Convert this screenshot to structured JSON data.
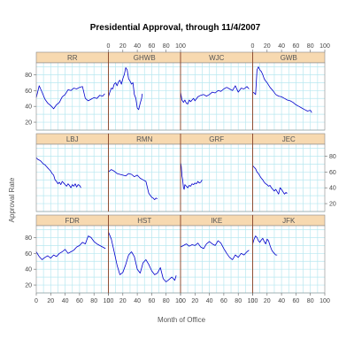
{
  "chart_data": {
    "type": "line",
    "title": "Presidential Approval, through  11/4/2007",
    "xlabel": "Month of Office",
    "ylabel": "Approval Rate",
    "xlim": [
      0,
      100
    ],
    "ylim": [
      10,
      95
    ],
    "x_ticks": [
      0,
      20,
      40,
      60,
      80,
      100
    ],
    "y_ticks": [
      20,
      40,
      60,
      80
    ],
    "grid": true,
    "colors": {
      "line": "#0000cc",
      "grid": "#b8e8f0",
      "strip": "#f7d9b0",
      "frame": "#888888",
      "divider": "#8b3a1a"
    },
    "panels": [
      {
        "name": "RR",
        "x": [
          0,
          4,
          8,
          12,
          16,
          20,
          24,
          28,
          32,
          36,
          40,
          44,
          48,
          52,
          56,
          60,
          64,
          68,
          72,
          76,
          80,
          84,
          88,
          92,
          95
        ],
        "y": [
          51,
          66,
          58,
          49,
          44,
          41,
          37,
          42,
          45,
          52,
          55,
          61,
          60,
          63,
          62,
          64,
          65,
          50,
          47,
          49,
          51,
          50,
          54,
          53,
          56
        ]
      },
      {
        "name": "GHWB",
        "x": [
          0,
          2,
          4,
          6,
          8,
          10,
          12,
          14,
          16,
          18,
          20,
          22,
          24,
          26,
          28,
          30,
          32,
          34,
          36,
          38,
          40,
          42,
          44,
          46,
          47
        ],
        "y": [
          52,
          58,
          63,
          62,
          68,
          70,
          66,
          71,
          73,
          68,
          75,
          80,
          89,
          86,
          75,
          72,
          68,
          70,
          55,
          50,
          38,
          36,
          44,
          50,
          56
        ]
      },
      {
        "name": "WJC",
        "x": [
          0,
          2,
          4,
          6,
          8,
          10,
          12,
          14,
          16,
          18,
          20,
          24,
          28,
          32,
          36,
          40,
          44,
          48,
          52,
          56,
          60,
          64,
          68,
          72,
          76,
          80,
          84,
          88,
          92,
          95
        ],
        "y": [
          58,
          48,
          45,
          48,
          44,
          43,
          48,
          46,
          48,
          50,
          47,
          52,
          54,
          55,
          53,
          55,
          58,
          57,
          60,
          59,
          62,
          64,
          62,
          60,
          66,
          58,
          63,
          62,
          65,
          62
        ]
      },
      {
        "name": "GWB",
        "x": [
          0,
          2,
          4,
          6,
          8,
          10,
          12,
          14,
          16,
          18,
          20,
          24,
          28,
          32,
          36,
          40,
          44,
          48,
          52,
          56,
          60,
          64,
          68,
          72,
          76,
          80,
          82
        ],
        "y": [
          58,
          57,
          55,
          86,
          90,
          86,
          84,
          80,
          75,
          72,
          70,
          64,
          60,
          55,
          53,
          52,
          50,
          48,
          47,
          45,
          42,
          40,
          38,
          36,
          34,
          35,
          32
        ]
      },
      {
        "name": "LBJ",
        "x": [
          0,
          2,
          4,
          6,
          8,
          10,
          12,
          14,
          16,
          18,
          20,
          22,
          24,
          26,
          28,
          30,
          32,
          34,
          36,
          38,
          40,
          42,
          44,
          46,
          48,
          50,
          52,
          54,
          56,
          58,
          60,
          62
        ],
        "y": [
          78,
          76,
          75,
          74,
          72,
          70,
          69,
          67,
          65,
          63,
          61,
          58,
          56,
          50,
          48,
          45,
          47,
          44,
          48,
          46,
          44,
          42,
          45,
          43,
          40,
          44,
          42,
          45,
          41,
          44,
          43,
          40
        ]
      },
      {
        "name": "RMN",
        "x": [
          0,
          4,
          8,
          12,
          16,
          20,
          24,
          28,
          32,
          36,
          40,
          44,
          48,
          52,
          56,
          60,
          62,
          64,
          66,
          68
        ],
        "y": [
          60,
          63,
          61,
          58,
          57,
          56,
          55,
          58,
          57,
          54,
          56,
          52,
          50,
          48,
          33,
          28,
          27,
          25,
          27,
          26
        ]
      },
      {
        "name": "GRF",
        "x": [
          0,
          1,
          2,
          3,
          4,
          5,
          6,
          8,
          10,
          12,
          14,
          16,
          18,
          20,
          22,
          24,
          26,
          28,
          30
        ],
        "y": [
          72,
          67,
          55,
          50,
          40,
          38,
          44,
          42,
          40,
          43,
          42,
          45,
          44,
          46,
          45,
          48,
          46,
          47,
          50
        ]
      },
      {
        "name": "JEC",
        "x": [
          0,
          2,
          4,
          6,
          8,
          10,
          12,
          14,
          16,
          18,
          20,
          22,
          24,
          26,
          28,
          30,
          32,
          34,
          36,
          38,
          40,
          42,
          44,
          46,
          48
        ],
        "y": [
          68,
          66,
          64,
          60,
          58,
          55,
          52,
          50,
          47,
          45,
          44,
          42,
          43,
          40,
          38,
          36,
          38,
          35,
          32,
          40,
          38,
          35,
          32,
          34,
          33
        ]
      },
      {
        "name": "FDR",
        "x": [
          0,
          4,
          8,
          12,
          16,
          20,
          24,
          28,
          32,
          36,
          40,
          44,
          48,
          52,
          56,
          60,
          64,
          68,
          72,
          76,
          80,
          84,
          88,
          92,
          96
        ],
        "y": [
          62,
          56,
          52,
          55,
          57,
          54,
          58,
          56,
          60,
          62,
          65,
          60,
          62,
          64,
          68,
          70,
          74,
          72,
          82,
          80,
          75,
          72,
          70,
          68,
          66
        ]
      },
      {
        "name": "HST",
        "x": [
          0,
          4,
          8,
          12,
          16,
          20,
          24,
          28,
          32,
          36,
          40,
          44,
          48,
          52,
          56,
          60,
          64,
          68,
          72,
          76,
          80,
          84,
          88,
          92,
          94
        ],
        "y": [
          87,
          78,
          62,
          45,
          33,
          36,
          46,
          58,
          62,
          56,
          40,
          35,
          48,
          52,
          46,
          38,
          33,
          35,
          42,
          28,
          24,
          27,
          30,
          26,
          32
        ]
      },
      {
        "name": "IKE",
        "x": [
          0,
          4,
          8,
          12,
          16,
          20,
          24,
          28,
          32,
          36,
          40,
          44,
          48,
          52,
          56,
          60,
          64,
          68,
          72,
          76,
          80,
          84,
          88,
          92,
          95
        ],
        "y": [
          68,
          70,
          72,
          69,
          71,
          70,
          73,
          68,
          66,
          72,
          75,
          72,
          70,
          76,
          73,
          66,
          60,
          55,
          52,
          58,
          55,
          60,
          58,
          62,
          64
        ]
      },
      {
        "name": "JFK",
        "x": [
          0,
          2,
          4,
          6,
          8,
          10,
          12,
          14,
          16,
          18,
          20,
          22,
          24,
          26,
          28,
          30,
          32,
          34
        ],
        "y": [
          72,
          78,
          82,
          80,
          76,
          74,
          77,
          79,
          75,
          72,
          78,
          76,
          70,
          65,
          62,
          60,
          58,
          58
        ]
      }
    ]
  }
}
